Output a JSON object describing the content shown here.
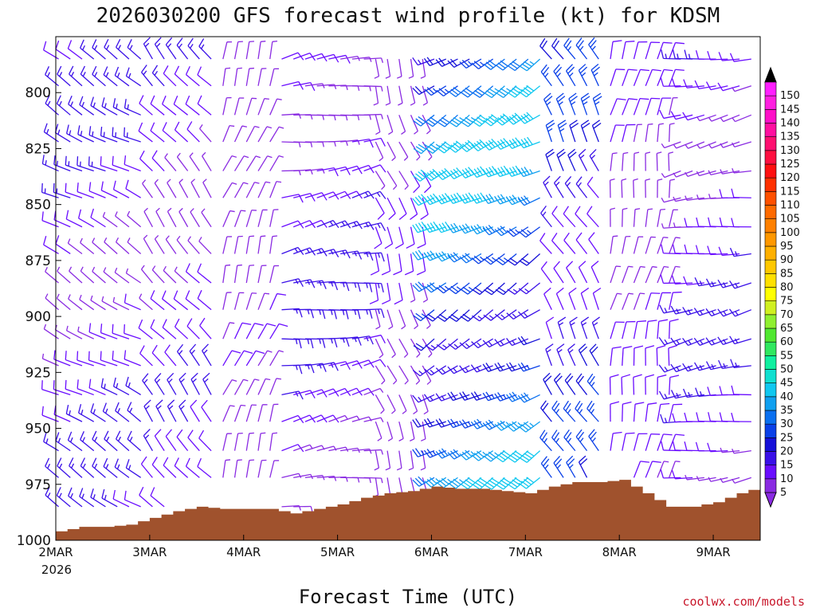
{
  "chart_data": {
    "type": "wind-barb-profile",
    "title": "2026030200 GFS forecast wind profile (kt) for KDSM",
    "xlabel": "Forecast Time (UTC)",
    "ylabel": "",
    "x_ticks": [
      "2MAR",
      "3MAR",
      "4MAR",
      "5MAR",
      "6MAR",
      "7MAR",
      "8MAR",
      "9MAR"
    ],
    "x_sub_label": "2026",
    "x_range_days": [
      0,
      7.5
    ],
    "y_ticks": [
      "800",
      "825",
      "850",
      "875",
      "900",
      "925",
      "950",
      "975",
      "1000"
    ],
    "y_range_hpa": [
      775,
      1000
    ],
    "pressure_levels": [
      785,
      797,
      810,
      822,
      835,
      847,
      860,
      872,
      885,
      897,
      910,
      922,
      935,
      947,
      960,
      972,
      985
    ],
    "forecast_step_hours": 3,
    "terrain_color": "#a0522d",
    "surface_pressure": {
      "days": [
        0,
        0.25,
        0.5,
        0.75,
        1.0,
        1.25,
        1.5,
        1.75,
        2.0,
        2.25,
        2.5,
        2.75,
        3.0,
        3.25,
        3.5,
        3.75,
        4.0,
        4.25,
        4.5,
        4.75,
        5.0,
        5.25,
        5.5,
        5.75,
        6.0,
        6.25,
        6.5,
        6.75,
        7.0,
        7.25,
        7.5
      ],
      "hpa": [
        996,
        994,
        994,
        993,
        990,
        987,
        985,
        986,
        986,
        986,
        988,
        986,
        984,
        981,
        979,
        978,
        976,
        977,
        977,
        978,
        979,
        976,
        974,
        974,
        973,
        979,
        985,
        985,
        983,
        979,
        976
      ]
    },
    "colorbar": {
      "labels": [
        "5",
        "10",
        "15",
        "20",
        "25",
        "30",
        "35",
        "40",
        "45",
        "50",
        "55",
        "60",
        "65",
        "70",
        "75",
        "80",
        "85",
        "90",
        "95",
        "100",
        "105",
        "110",
        "115",
        "120",
        "125",
        "130",
        "135",
        "140",
        "145",
        "150"
      ],
      "colors": [
        "#8a2be2",
        "#6a0dff",
        "#3a10e8",
        "#1510d8",
        "#0a40e8",
        "#0a70f0",
        "#10a0f0",
        "#10c8f0",
        "#10e0d0",
        "#10f0a0",
        "#30e860",
        "#50e830",
        "#90f030",
        "#d0f020",
        "#ffff00",
        "#ffe000",
        "#ffc800",
        "#ffb000",
        "#ff9800",
        "#ff8000",
        "#ff6a00",
        "#ff5000",
        "#ff3000",
        "#ff1010",
        "#ff1040",
        "#ff1070",
        "#ff10a0",
        "#ff10c8",
        "#ff20e0",
        "#ff20ff"
      ]
    },
    "wind_phases": [
      {
        "from_day": 0.0,
        "to_day": 1.0,
        "dir_deg": 300,
        "speed_kt": 14,
        "note": "northwest flow"
      },
      {
        "from_day": 1.0,
        "to_day": 1.7,
        "dir_deg": 320,
        "speed_kt": 12,
        "note": "northwest flow"
      },
      {
        "from_day": 1.7,
        "to_day": 2.3,
        "dir_deg": 20,
        "speed_kt": 7,
        "note": "light north"
      },
      {
        "from_day": 2.3,
        "to_day": 3.3,
        "dir_deg": 80,
        "speed_kt": 15,
        "note": "easterly"
      },
      {
        "from_day": 3.3,
        "to_day": 4.0,
        "dir_deg": 160,
        "speed_kt": 8,
        "note": "light south"
      },
      {
        "from_day": 4.0,
        "to_day": 5.2,
        "dir_deg": 240,
        "speed_kt": 38,
        "note": "strong southwest"
      },
      {
        "from_day": 5.2,
        "to_day": 5.8,
        "dir_deg": 330,
        "speed_kt": 22,
        "note": "veering northwest"
      },
      {
        "from_day": 5.8,
        "to_day": 6.6,
        "dir_deg": 10,
        "speed_kt": 10,
        "note": "light north"
      },
      {
        "from_day": 6.6,
        "to_day": 7.5,
        "dir_deg": 260,
        "speed_kt": 14,
        "note": "westerly"
      }
    ],
    "credit": "coolwx.com/models"
  }
}
